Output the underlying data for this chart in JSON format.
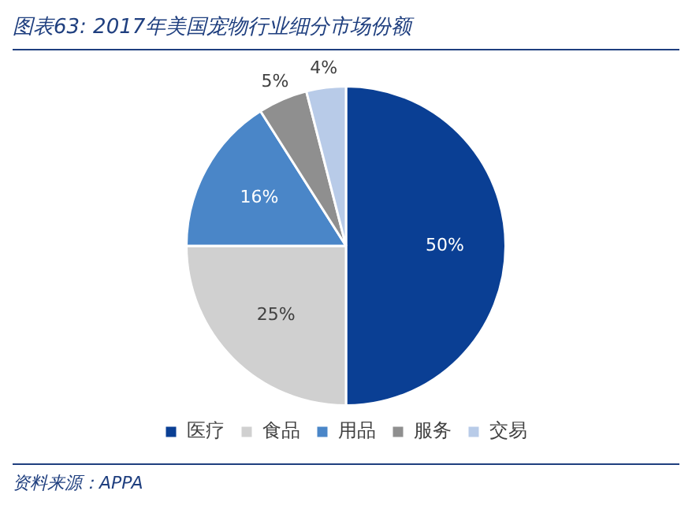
{
  "chart_data": {
    "type": "pie",
    "title": "图表63:  2017年美国宠物行业细分市场份额",
    "categories": [
      "医疗",
      "食品",
      "用品",
      "服务",
      "交易"
    ],
    "values": [
      50,
      25,
      16,
      5,
      4
    ],
    "colors": [
      "#0a3f94",
      "#d0d0d0",
      "#4a86c8",
      "#8f8f8f",
      "#b8cbe8"
    ],
    "value_labels": [
      "50%",
      "25%",
      "16%",
      "5%",
      "4%"
    ],
    "legend": "bottom",
    "annotations": [
      "资料来源：APPA"
    ]
  }
}
